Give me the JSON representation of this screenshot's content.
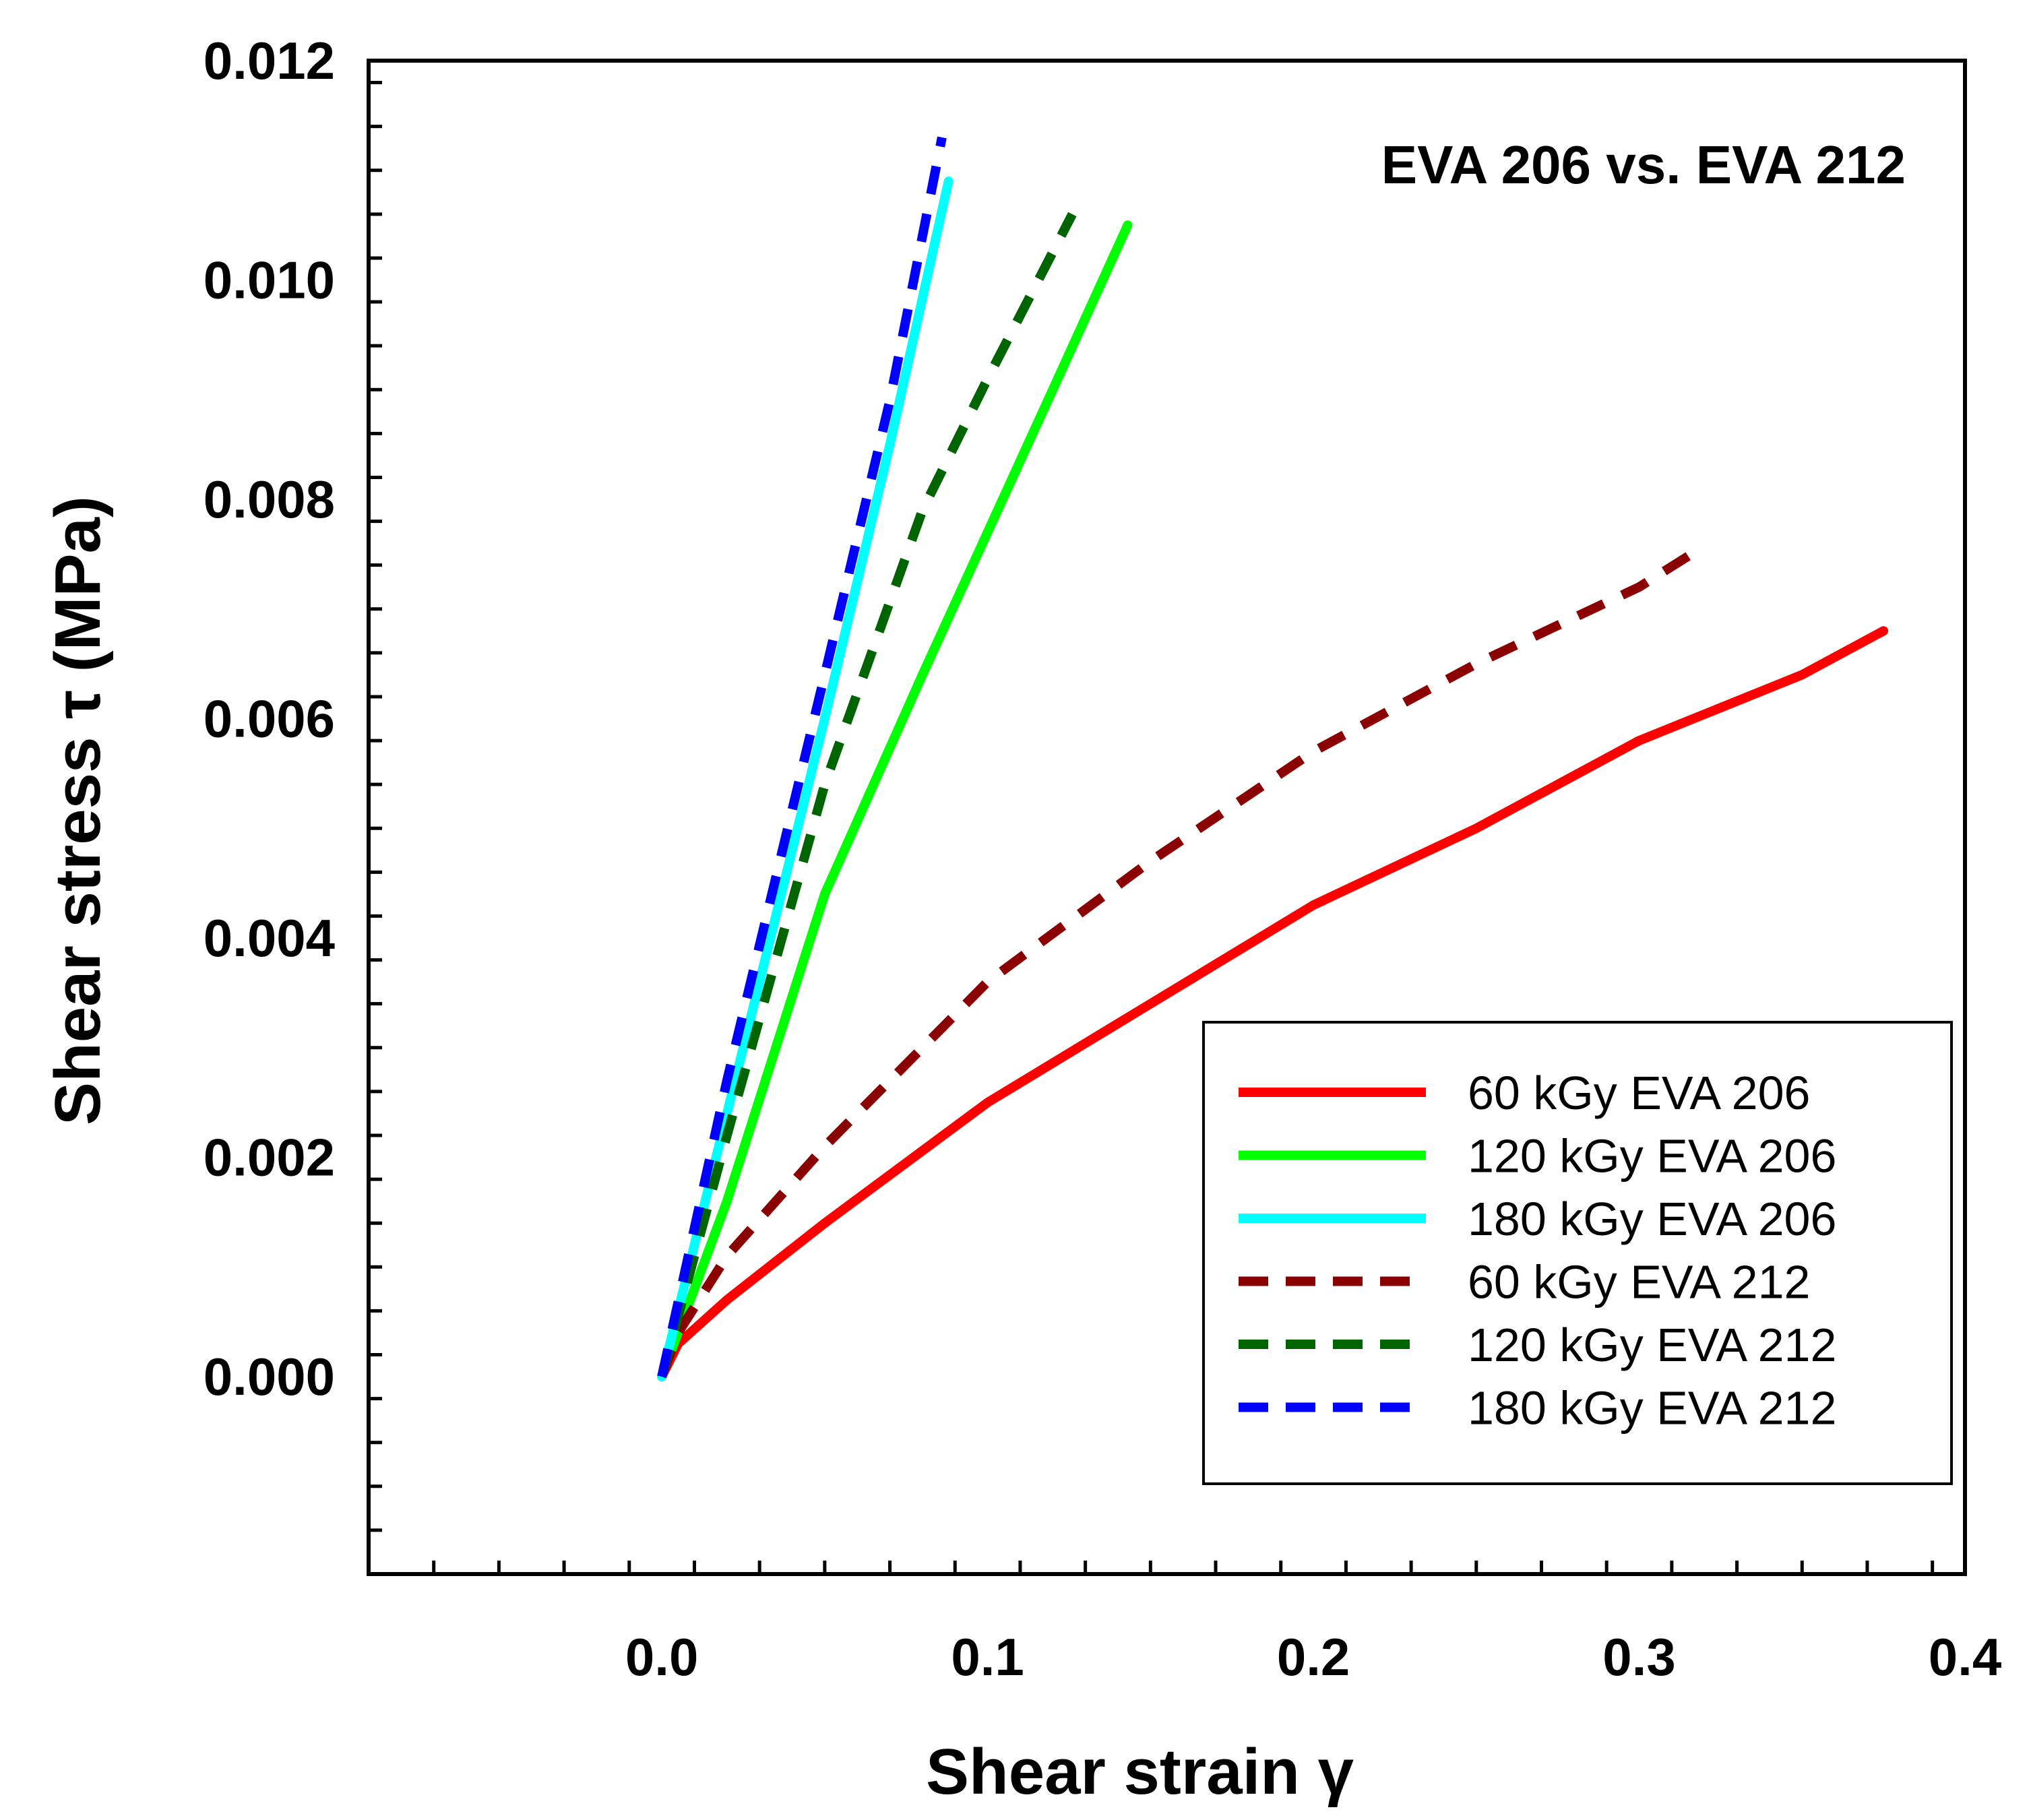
{
  "chart_data": {
    "type": "line",
    "title": "EVA 206 vs. EVA 212",
    "xlabel": "Shear strain γ",
    "ylabel": "Shear stress τ (MPa)",
    "xlim": [
      -0.09,
      0.4
    ],
    "ylim": [
      -0.0018,
      0.012
    ],
    "x_ticks": [
      0.0,
      0.1,
      0.2,
      0.3,
      0.4
    ],
    "x_tick_labels": [
      "0.0",
      "0.1",
      "0.2",
      "0.3",
      "0.4"
    ],
    "x_minor_step": 0.02,
    "y_ticks": [
      0.0,
      0.002,
      0.004,
      0.006,
      0.008,
      0.01,
      0.012
    ],
    "y_tick_labels": [
      "0.000",
      "0.002",
      "0.004",
      "0.006",
      "0.008",
      "0.010",
      "0.012"
    ],
    "y_minor_step": 0.0004,
    "grid": false,
    "legend_position": "lower-right",
    "series": [
      {
        "name": "60 kGy EVA 206",
        "color": "#ff0000",
        "style": "solid",
        "x": [
          0,
          0.005,
          0.02,
          0.05,
          0.1,
          0.15,
          0.2,
          0.25,
          0.3,
          0.35,
          0.375
        ],
        "y": [
          0,
          0.0003,
          0.0007,
          0.0014,
          0.0025,
          0.0034,
          0.0043,
          0.005,
          0.0058,
          0.0064,
          0.0068
        ]
      },
      {
        "name": "120 kGy EVA 206",
        "color": "#00ff00",
        "style": "solid",
        "x": [
          0,
          0.02,
          0.05,
          0.08,
          0.1,
          0.12,
          0.143
        ],
        "y": [
          0,
          0.0016,
          0.0044,
          0.0064,
          0.0077,
          0.009,
          0.0105
        ]
      },
      {
        "name": "180 kGy EVA 206",
        "color": "#00ffff",
        "style": "solid",
        "x": [
          0,
          0.02,
          0.05,
          0.07,
          0.088
        ],
        "y": [
          0,
          0.0024,
          0.006,
          0.0085,
          0.0109
        ]
      },
      {
        "name": "60 kGy EVA 212",
        "color": "#8b0000",
        "style": "dashed",
        "x": [
          0,
          0.005,
          0.02,
          0.05,
          0.08,
          0.1,
          0.15,
          0.2,
          0.25,
          0.3,
          0.316
        ],
        "y": [
          0,
          0.0004,
          0.0011,
          0.0021,
          0.003,
          0.0036,
          0.0047,
          0.0057,
          0.0065,
          0.0072,
          0.0075
        ]
      },
      {
        "name": "120 kGy EVA 212",
        "color": "#006400",
        "style": "dashed",
        "x": [
          0,
          0.02,
          0.05,
          0.08,
          0.1,
          0.126
        ],
        "y": [
          0,
          0.0022,
          0.0054,
          0.0079,
          0.0091,
          0.0106
        ]
      },
      {
        "name": "180 kGy EVA 212",
        "color": "#0000ff",
        "style": "dashed",
        "x": [
          0,
          0.02,
          0.05,
          0.07,
          0.086
        ],
        "y": [
          0,
          0.0027,
          0.0064,
          0.0089,
          0.0113
        ]
      }
    ]
  }
}
